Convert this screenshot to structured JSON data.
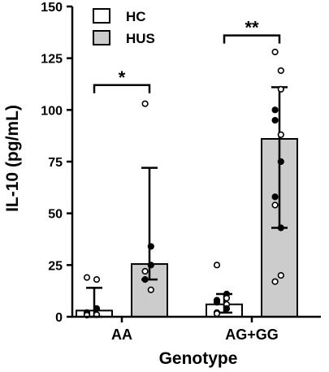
{
  "chart_data": {
    "type": "bar",
    "title": "",
    "xlabel": "Genotype",
    "ylabel": "IL-10 (pg/mL)",
    "ylim": [
      0,
      150
    ],
    "yticks": [
      0,
      25,
      50,
      75,
      100,
      125,
      150
    ],
    "categories": [
      "AA",
      "AG+GG"
    ],
    "legend": {
      "placement": "top-left",
      "entries": [
        "HC",
        "HUS"
      ]
    },
    "series": [
      {
        "name": "HC",
        "color": "#ffffff",
        "values": [
          3,
          6
        ],
        "error_low": [
          0,
          2
        ],
        "error_high": [
          14,
          11
        ],
        "points": [
          [
            {
              "y": 19,
              "filled": false
            },
            {
              "y": 18,
              "filled": false
            },
            {
              "y": 4,
              "filled": true
            },
            {
              "y": 2,
              "filled": false
            },
            {
              "y": 1.5,
              "filled": true
            },
            {
              "y": 1,
              "filled": false
            },
            {
              "y": 1,
              "filled": false
            },
            {
              "y": 1,
              "filled": true
            },
            {
              "y": 0.8,
              "filled": false
            }
          ],
          [
            {
              "y": 25,
              "filled": false
            },
            {
              "y": 11,
              "filled": true
            },
            {
              "y": 9,
              "filled": false
            },
            {
              "y": 8,
              "filled": true
            },
            {
              "y": 7,
              "filled": true
            },
            {
              "y": 6,
              "filled": false
            },
            {
              "y": 4,
              "filled": true
            },
            {
              "y": 2,
              "filled": false
            },
            {
              "y": 1.5,
              "filled": false
            }
          ]
        ]
      },
      {
        "name": "HUS",
        "color": "#cccccc",
        "values": [
          25.5,
          86
        ],
        "error_low": [
          18,
          43
        ],
        "error_high": [
          72,
          111
        ],
        "points": [
          [
            {
              "y": 103,
              "filled": false
            },
            {
              "y": 34,
              "filled": true
            },
            {
              "y": 25,
              "filled": true
            },
            {
              "y": 22,
              "filled": false
            },
            {
              "y": 18,
              "filled": true
            },
            {
              "y": 13,
              "filled": false
            }
          ],
          [
            {
              "y": 128,
              "filled": false
            },
            {
              "y": 119,
              "filled": false
            },
            {
              "y": 110,
              "filled": false
            },
            {
              "y": 100,
              "filled": true
            },
            {
              "y": 95,
              "filled": true
            },
            {
              "y": 88,
              "filled": false
            },
            {
              "y": 75,
              "filled": true
            },
            {
              "y": 58,
              "filled": true
            },
            {
              "y": 54,
              "filled": false
            },
            {
              "y": 43,
              "filled": true
            },
            {
              "y": 20,
              "filled": false
            },
            {
              "y": 17,
              "filled": false
            }
          ]
        ]
      }
    ],
    "annotations": [
      {
        "text": "*",
        "category": "AA",
        "y": 112
      },
      {
        "text": "**",
        "category": "AG+GG",
        "y": 136
      }
    ]
  }
}
